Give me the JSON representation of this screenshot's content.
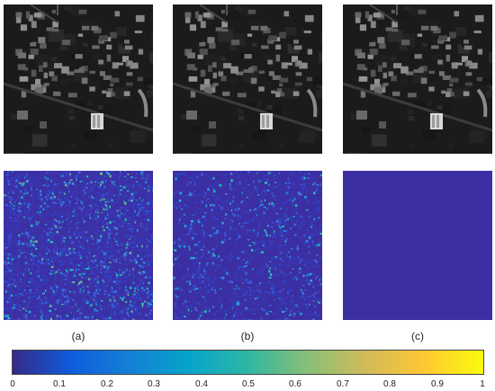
{
  "figure": {
    "panels": [
      {
        "label": "(a)",
        "error_style": "high"
      },
      {
        "label": "(b)",
        "error_style": "medium"
      },
      {
        "label": "(c)",
        "error_style": "none"
      }
    ],
    "colorbar": {
      "ticks": [
        "0",
        "0.1",
        "0.2",
        "0.3",
        "0.4",
        "0.5",
        "0.6",
        "0.7",
        "0.8",
        "0.9",
        "1"
      ],
      "range": [
        0,
        1
      ],
      "colormap": "parula",
      "colors": [
        "#352a87",
        "#0f5cdd",
        "#1481d6",
        "#06a4ca",
        "#2eb7a4",
        "#87bf77",
        "#d1bb59",
        "#fec832",
        "#f9fb0e"
      ]
    },
    "background_error_color": "#3c2fa4"
  }
}
